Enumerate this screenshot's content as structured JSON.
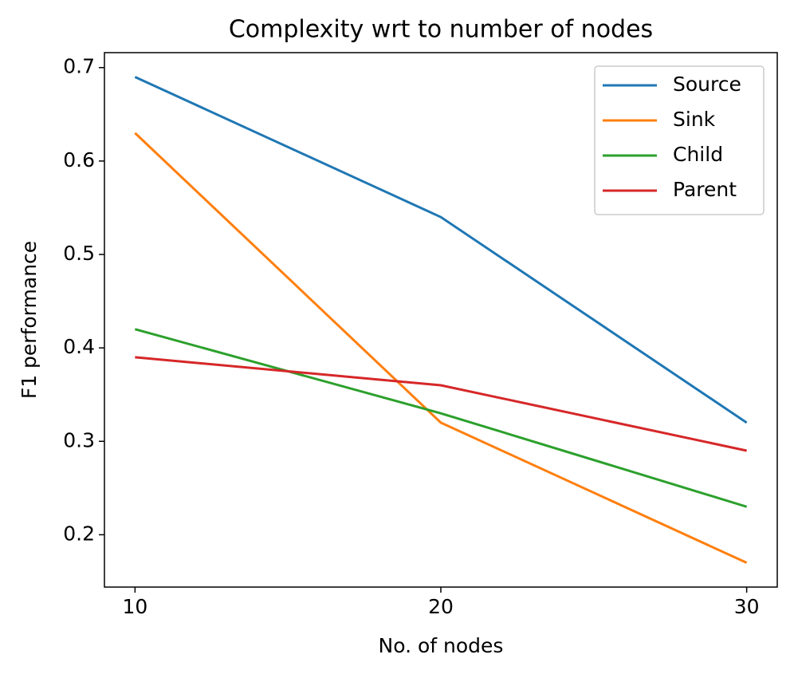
{
  "chart_data": {
    "type": "line",
    "title": "Complexity wrt to number of nodes",
    "x_label": "No. of nodes",
    "y_label": "F1 performance",
    "x": [
      10,
      20,
      30
    ],
    "series": [
      {
        "name": "Source",
        "color": "#1f77b4",
        "values": [
          0.69,
          0.54,
          0.32
        ]
      },
      {
        "name": "Sink",
        "color": "#ff7f0e",
        "values": [
          0.63,
          0.32,
          0.17
        ]
      },
      {
        "name": "Child",
        "color": "#2ca02c",
        "values": [
          0.42,
          0.33,
          0.23
        ]
      },
      {
        "name": "Parent",
        "color": "#d62728",
        "values": [
          0.39,
          0.36,
          0.29
        ]
      }
    ],
    "xlim": [
      9,
      31
    ],
    "xticks": [
      10,
      20,
      30
    ],
    "ylim": [
      0.144,
      0.716
    ],
    "yticks": [
      0.2,
      0.3,
      0.4,
      0.5,
      0.6,
      0.7
    ],
    "grid": false,
    "legend": "upper right"
  }
}
